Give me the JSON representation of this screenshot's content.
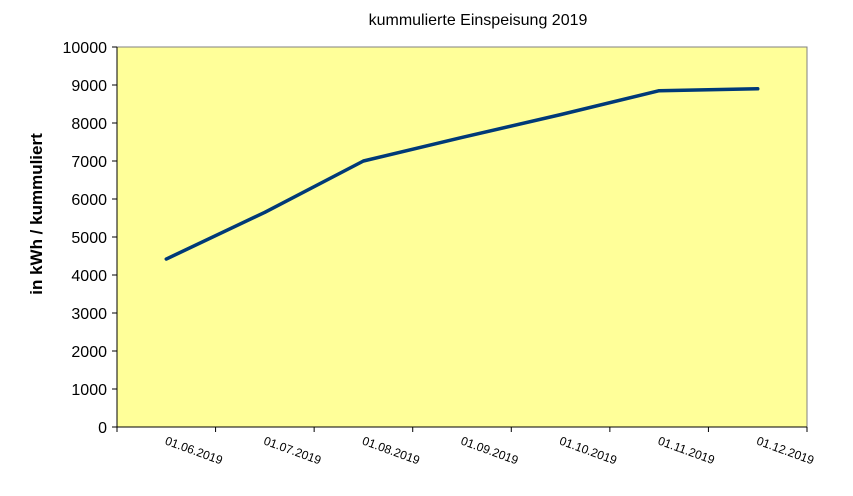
{
  "chart_data": {
    "type": "line",
    "title": "kummulierte Einspeisung 2019",
    "xlabel": "",
    "ylabel": "in kWh / kummuliert",
    "ylim": [
      0,
      10000
    ],
    "yticks": [
      "0",
      "1000",
      "2000",
      "3000",
      "4000",
      "5000",
      "6000",
      "7000",
      "8000",
      "9000",
      "10000"
    ],
    "categories": [
      "01.06.2019",
      "01.07.2019",
      "01.08.2019",
      "01.09.2019",
      "01.10.2019",
      "01.11.2019",
      "01.12.2019"
    ],
    "series": [
      {
        "values": [
          4420,
          5650,
          7000,
          7620,
          8220,
          8850,
          8900
        ]
      }
    ],
    "grid": false,
    "plot_background": "#ffff99",
    "line_color": "#003a78"
  }
}
